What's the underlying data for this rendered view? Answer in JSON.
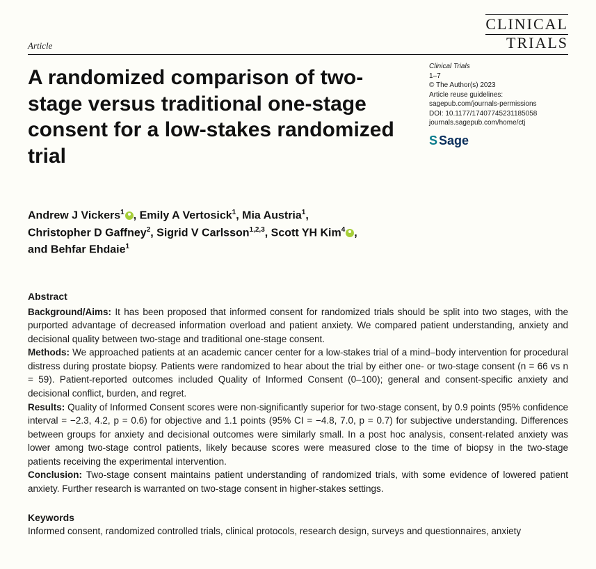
{
  "header": {
    "article_type": "Article",
    "journal_line1": "CLINICAL",
    "journal_line2": "TRIALS"
  },
  "meta": {
    "journal": "Clinical Trials",
    "pages": "1–7",
    "copyright": "© The Author(s) 2023",
    "reuse_label": "Article reuse guidelines:",
    "reuse_link": "sagepub.com/journals-permissions",
    "doi": "DOI: 10.1177/17407745231185058",
    "journal_home": "journals.sagepub.com/home/ctj",
    "publisher": "Sage"
  },
  "title": "A randomized comparison of two-stage versus traditional one-stage consent for a low-stakes randomized trial",
  "authors": {
    "list": [
      {
        "name": "Andrew J Vickers",
        "aff": "1",
        "orcid": true
      },
      {
        "name": "Emily A Vertosick",
        "aff": "1",
        "orcid": false
      },
      {
        "name": "Mia Austria",
        "aff": "1",
        "orcid": false
      },
      {
        "name": "Christopher D Gaffney",
        "aff": "2",
        "orcid": false
      },
      {
        "name": "Sigrid V Carlsson",
        "aff": "1,2,3",
        "orcid": false
      },
      {
        "name": "Scott YH Kim",
        "aff": "4",
        "orcid": true
      },
      {
        "name": "Behfar Ehdaie",
        "aff": "1",
        "orcid": false
      }
    ],
    "connector_and": "and"
  },
  "abstract": {
    "heading": "Abstract",
    "sections": [
      {
        "label": "Background/Aims:",
        "text": "It has been proposed that informed consent for randomized trials should be split into two stages, with the purported advantage of decreased information overload and patient anxiety. We compared patient understanding, anxiety and decisional quality between two-stage and traditional one-stage consent."
      },
      {
        "label": "Methods:",
        "text": "We approached patients at an academic cancer center for a low-stakes trial of a mind–body intervention for procedural distress during prostate biopsy. Patients were randomized to hear about the trial by either one- or two-stage consent (n = 66 vs n = 59). Patient-reported outcomes included Quality of Informed Consent (0–100); general and consent-specific anxiety and decisional conflict, burden, and regret."
      },
      {
        "label": "Results:",
        "text": "Quality of Informed Consent scores were non-significantly superior for two-stage consent, by 0.9 points (95% confidence interval = −2.3, 4.2, p = 0.6) for objective and 1.1 points (95% CI = −4.8, 7.0, p = 0.7) for subjective understanding. Differences between groups for anxiety and decisional outcomes were similarly small. In a post hoc analysis, consent-related anxiety was lower among two-stage control patients, likely because scores were measured close to the time of biopsy in the two-stage patients receiving the experimental intervention."
      },
      {
        "label": "Conclusion:",
        "text": "Two-stage consent maintains patient understanding of randomized trials, with some evidence of lowered patient anxiety. Further research is warranted on two-stage consent in higher-stakes settings."
      }
    ]
  },
  "keywords": {
    "heading": "Keywords",
    "text": "Informed consent, randomized controlled trials, clinical protocols, research design, surveys and questionnaires, anxiety"
  }
}
